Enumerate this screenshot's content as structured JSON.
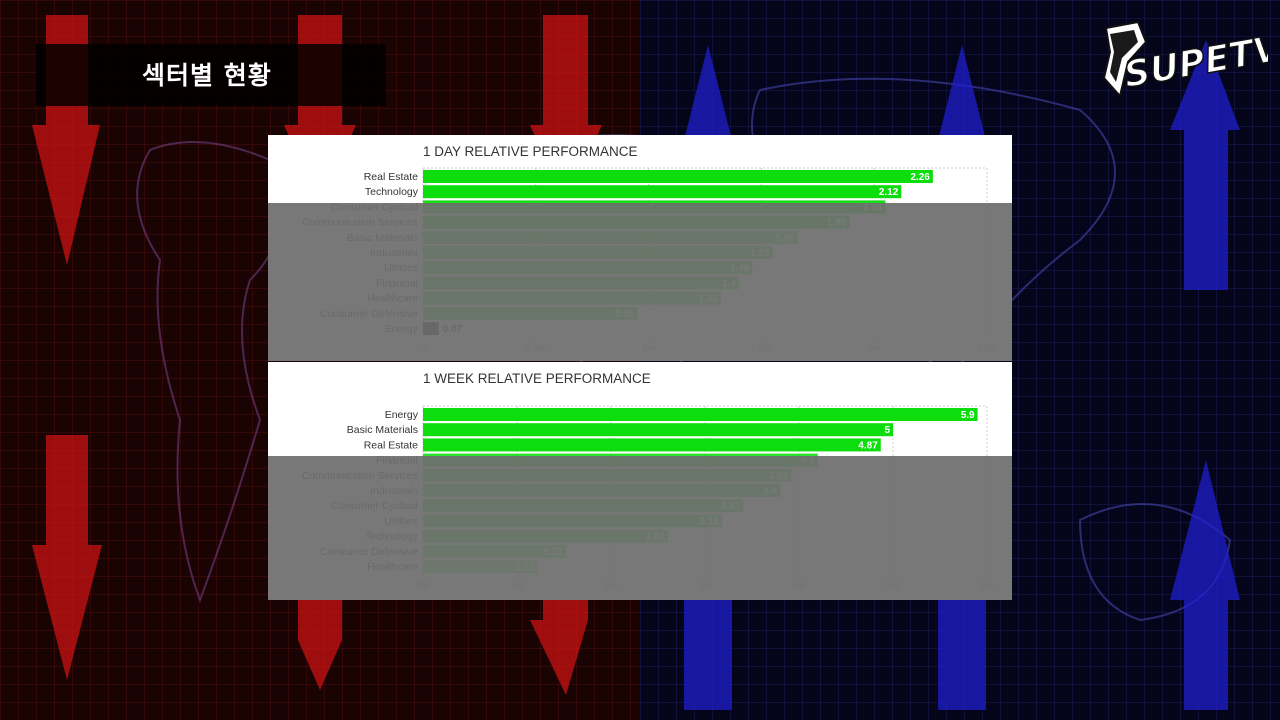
{
  "page": {
    "title": "섹터별 현황"
  },
  "logo": {
    "text": "SUPETV"
  },
  "chart_data": [
    {
      "type": "bar",
      "orientation": "horizontal",
      "title": "1 DAY RELATIVE PERFORMANCE",
      "categories": [
        "Real Estate",
        "Technology",
        "Consumer Cyclical",
        "Communication Services",
        "Basic Materials",
        "Industrials",
        "Utilities",
        "Financial",
        "Healthcare",
        "Consumer Defensive",
        "Energy"
      ],
      "values": [
        2.26,
        2.12,
        2.05,
        1.89,
        1.66,
        1.55,
        1.46,
        1.4,
        1.32,
        0.95,
        0.07
      ],
      "xlim": [
        0,
        2.5
      ],
      "ticks": [
        "0%",
        "0.5%",
        "1%",
        "1.5%",
        "2%",
        "2.5%"
      ],
      "grid": true
    },
    {
      "type": "bar",
      "orientation": "horizontal",
      "title": "1 WEEK RELATIVE PERFORMANCE",
      "categories": [
        "Energy",
        "Basic Materials",
        "Real Estate",
        "Financial",
        "Communication Services",
        "Industrials",
        "Consumer Cyclical",
        "Utilities",
        "Technology",
        "Consumer Defensive",
        "Healthcare"
      ],
      "values": [
        5.9,
        5,
        4.87,
        4.2,
        3.92,
        3.8,
        3.41,
        3.18,
        2.61,
        1.52,
        1.22
      ],
      "xlim": [
        0,
        6
      ],
      "ticks": [
        "0%",
        "1%",
        "2%",
        "3%",
        "4%",
        "5%",
        "6%"
      ],
      "grid": true
    }
  ],
  "colors": {
    "bar_bright": "#0ddc0d",
    "bar_dark": "#0b5c0b",
    "bar_min": "#1e1e1e",
    "left_half": "#1a0303",
    "right_half": "#04041a"
  }
}
